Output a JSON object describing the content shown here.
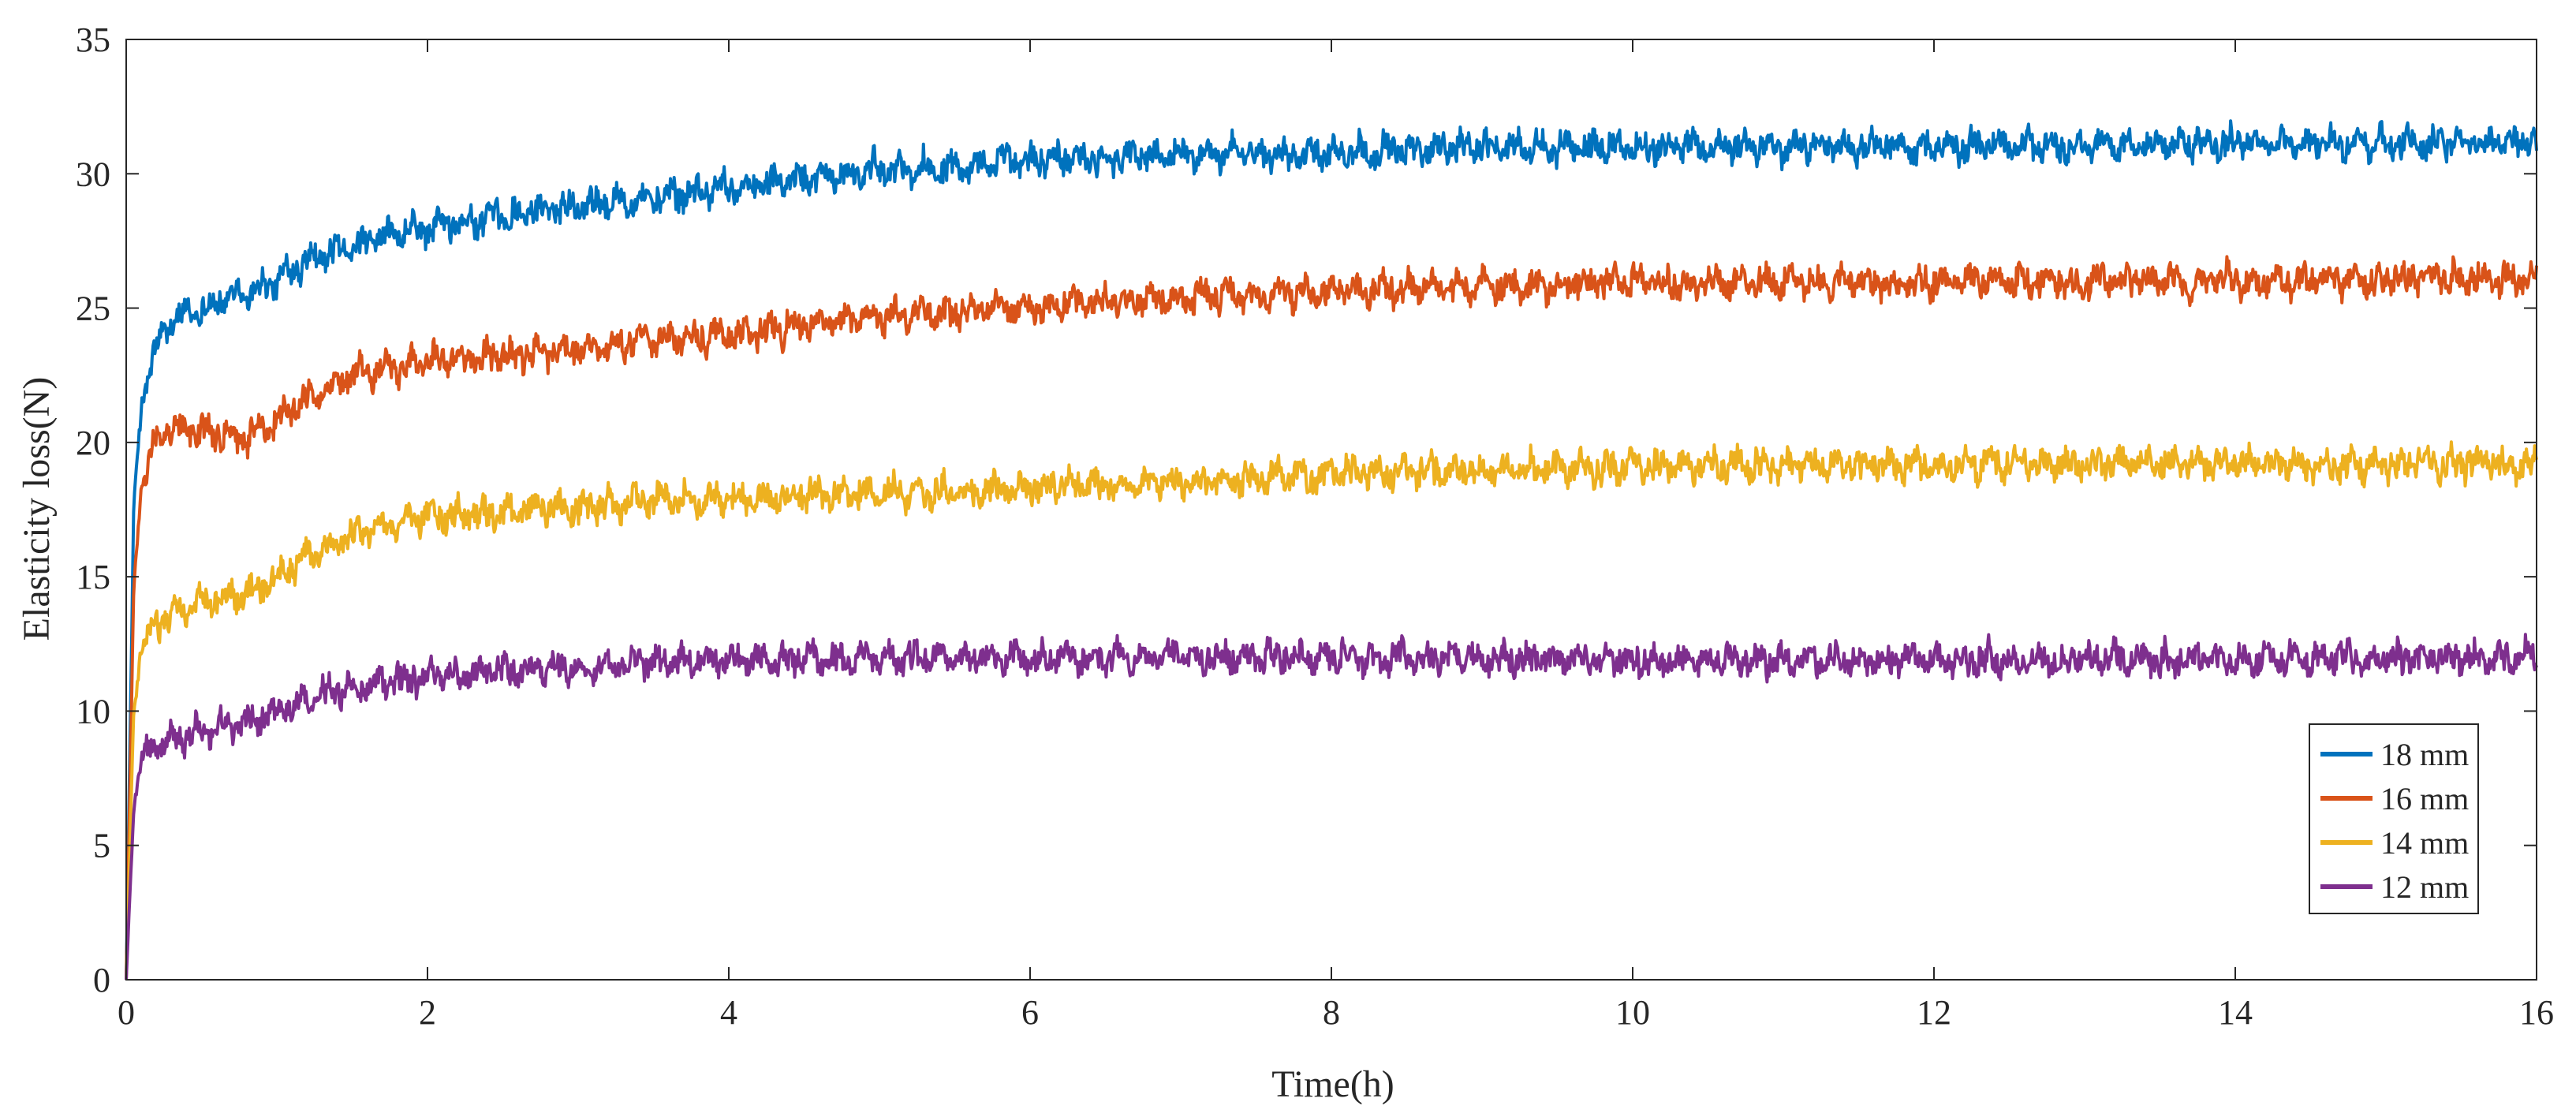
{
  "chart_data": {
    "type": "line",
    "title": "",
    "xlabel": "Time(h)",
    "ylabel": "Elasticity loss(N)",
    "xlim": [
      0,
      16
    ],
    "ylim": [
      0,
      35
    ],
    "xticks": [
      0,
      2,
      4,
      6,
      8,
      10,
      12,
      14,
      16
    ],
    "yticks": [
      0,
      5,
      10,
      15,
      20,
      25,
      30,
      35
    ],
    "grid": false,
    "legend_position": "lower-right",
    "series": [
      {
        "name": "18 mm",
        "color": "#0072BD",
        "noise": 0.75,
        "x": [
          0,
          0.05,
          0.1,
          0.2,
          0.3,
          0.5,
          0.8,
          1.0,
          1.2,
          1.5,
          2.0,
          2.5,
          3.0,
          3.5,
          4.0,
          5.0,
          6.0,
          7.0,
          8.0,
          9.0,
          10.0,
          12.0,
          14.0,
          16.0
        ],
        "y": [
          0,
          17.5,
          21.5,
          23.5,
          24.5,
          25.0,
          25.6,
          26.0,
          26.8,
          27.3,
          28.0,
          28.4,
          28.9,
          29.1,
          29.5,
          30.1,
          30.5,
          30.7,
          30.8,
          31.0,
          31.0,
          31.0,
          31.1,
          31.2
        ]
      },
      {
        "name": "16 mm",
        "color": "#D95319",
        "noise": 0.75,
        "x": [
          0,
          0.05,
          0.1,
          0.2,
          0.3,
          0.5,
          0.8,
          1.0,
          1.2,
          1.5,
          2.0,
          2.5,
          3.0,
          3.5,
          4.0,
          5.0,
          6.0,
          7.0,
          8.0,
          9.0,
          10.0,
          12.0,
          14.0,
          16.0
        ],
        "y": [
          0,
          14.5,
          18.5,
          20.3,
          20.6,
          20.4,
          20.2,
          20.8,
          21.5,
          22.5,
          23.0,
          23.2,
          23.5,
          23.8,
          24.0,
          24.7,
          25.1,
          25.4,
          25.6,
          25.8,
          25.9,
          26.0,
          26.0,
          26.1
        ]
      },
      {
        "name": "14 mm",
        "color": "#EDB120",
        "noise": 0.75,
        "x": [
          0,
          0.05,
          0.1,
          0.2,
          0.3,
          0.5,
          0.8,
          1.0,
          1.2,
          1.5,
          2.0,
          2.5,
          3.0,
          3.5,
          4.0,
          5.0,
          6.0,
          7.0,
          8.0,
          9.0,
          10.0,
          12.0,
          14.0,
          16.0
        ],
        "y": [
          0,
          10.0,
          12.3,
          13.2,
          13.6,
          14.0,
          14.4,
          15.0,
          15.8,
          16.6,
          17.2,
          17.4,
          17.6,
          17.8,
          17.9,
          18.1,
          18.3,
          18.5,
          18.8,
          19.0,
          19.1,
          19.2,
          19.2,
          19.2
        ]
      },
      {
        "name": "12 mm",
        "color": "#7E2F8E",
        "noise": 0.75,
        "x": [
          0,
          0.05,
          0.1,
          0.2,
          0.3,
          0.5,
          0.8,
          1.0,
          1.2,
          1.5,
          2.0,
          2.5,
          3.0,
          3.5,
          4.0,
          5.0,
          6.0,
          7.0,
          8.0,
          9.0,
          10.0,
          12.0,
          14.0,
          16.0
        ],
        "y": [
          0,
          6.5,
          8.2,
          8.8,
          9.0,
          9.2,
          9.6,
          10.0,
          10.5,
          10.9,
          11.3,
          11.5,
          11.6,
          11.8,
          11.9,
          12.0,
          12.0,
          12.0,
          12.0,
          12.0,
          11.9,
          11.9,
          11.9,
          12.0
        ]
      }
    ]
  }
}
